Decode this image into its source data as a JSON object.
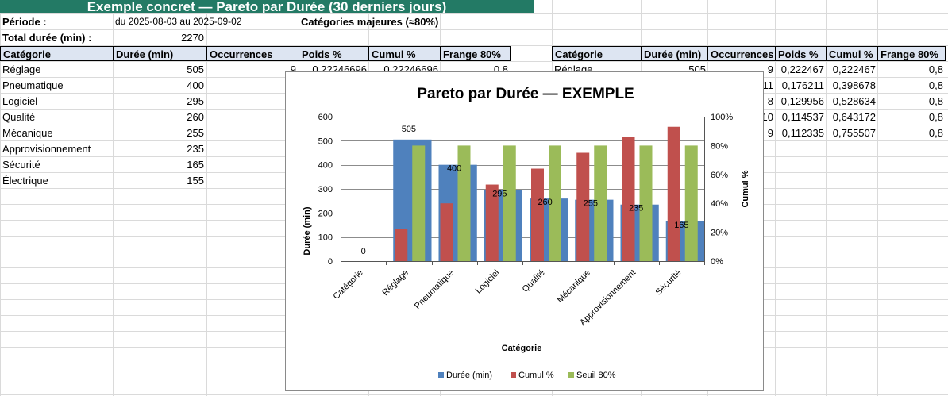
{
  "title": "Exemple concret — Pareto par Durée (30 derniers jours)",
  "info": {
    "period_label": "Période :",
    "period_value": "du 2025-08-03 au 2025-09-02",
    "major_label": "Catégories majeures (≈80%)",
    "total_label": "Total durée (min) :",
    "total_value": "2270"
  },
  "left_table": {
    "headers": [
      "Catégorie",
      "Durée (min)",
      "Occurrences",
      "Poids %",
      "Cumul %",
      "Frange 80%"
    ],
    "first_row_values": [
      "9",
      "0,22246696",
      "0,22246696",
      "0,8"
    ],
    "rows": [
      {
        "cat": "Réglage",
        "dur": "505"
      },
      {
        "cat": "Pneumatique",
        "dur": "400"
      },
      {
        "cat": "Logiciel",
        "dur": "295"
      },
      {
        "cat": "Qualité",
        "dur": "260"
      },
      {
        "cat": "Mécanique",
        "dur": "255"
      },
      {
        "cat": "Approvisionnement",
        "dur": "235"
      },
      {
        "cat": "Sécurité",
        "dur": "165"
      },
      {
        "cat": "Électrique",
        "dur": "155"
      }
    ]
  },
  "right_table": {
    "headers": [
      "Catégorie",
      "Durée (min)",
      "Occurrences",
      "Poids %",
      "Cumul %",
      "Frange 80%"
    ],
    "rows": [
      {
        "cat": "Réglage",
        "dur": "505",
        "occ": "9",
        "poids": "0,222467",
        "cumul": "0,222467",
        "frange": "0,8"
      },
      {
        "cat": "",
        "dur": "",
        "occ": "11",
        "poids": "0,176211",
        "cumul": "0,398678",
        "frange": "0,8"
      },
      {
        "cat": "",
        "dur": "",
        "occ": "8",
        "poids": "0,129956",
        "cumul": "0,528634",
        "frange": "0,8"
      },
      {
        "cat": "",
        "dur": "",
        "occ": "10",
        "poids": "0,114537",
        "cumul": "0,643172",
        "frange": "0,8"
      },
      {
        "cat": "",
        "dur": "",
        "occ": "9",
        "poids": "0,112335",
        "cumul": "0,755507",
        "frange": "0,8"
      }
    ]
  },
  "chart_data": {
    "type": "bar",
    "title": "Pareto par Durée — EXEMPLE",
    "xlabel": "Catégorie",
    "ylabel": "Durée (min)",
    "y2label": "Cumul %",
    "categories": [
      "Catégorie",
      "Réglage",
      "Pneumatique",
      "Logiciel",
      "Qualité",
      "Mécanique",
      "Approvisionnement",
      "Sécurité"
    ],
    "ylim": [
      0,
      600
    ],
    "yticks": [
      "0",
      "100",
      "200",
      "300",
      "400",
      "500",
      "600"
    ],
    "y2lim": [
      0,
      1
    ],
    "y2ticks": [
      "0%",
      "20%",
      "40%",
      "60%",
      "80%",
      "100%"
    ],
    "series": [
      {
        "name": "Durée (min)",
        "axis": "primary",
        "color": "#4f81bd",
        "values": [
          0,
          505,
          400,
          295,
          260,
          255,
          235,
          165
        ]
      },
      {
        "name": "Cumul %",
        "axis": "secondary",
        "color": "#c0504d",
        "values": [
          0,
          0.22,
          0.4,
          0.53,
          0.64,
          0.75,
          0.86,
          0.93
        ]
      },
      {
        "name": "Seuil 80%",
        "axis": "secondary",
        "color": "#9bbb59",
        "values": [
          0,
          0.8,
          0.8,
          0.8,
          0.8,
          0.8,
          0.8,
          0.8
        ]
      }
    ],
    "data_labels": [
      "0",
      "505",
      "400",
      "295",
      "260",
      "255",
      "235",
      "165"
    ],
    "legend": "bottom",
    "grid": true
  }
}
